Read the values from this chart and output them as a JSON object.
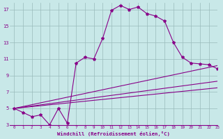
{
  "xlabel": "Windchill (Refroidissement éolien,°C)",
  "bg_color": "#c8e8e8",
  "line_color": "#880088",
  "grid_color": "#99bbbb",
  "line1_x": [
    0,
    1,
    2,
    3,
    4,
    5,
    6,
    7,
    8,
    9,
    10,
    11,
    12,
    13,
    14,
    15,
    16,
    17,
    18,
    19,
    20,
    21,
    22,
    23
  ],
  "line1_y": [
    5.0,
    4.5,
    4.0,
    4.2,
    3.0,
    5.0,
    3.2,
    10.5,
    11.2,
    11.0,
    13.5,
    16.9,
    17.5,
    17.0,
    17.3,
    16.5,
    16.2,
    15.6,
    13.0,
    11.2,
    10.5,
    10.4,
    10.3,
    9.8
  ],
  "line2_x": [
    0,
    23
  ],
  "line2_y": [
    5.0,
    10.2
  ],
  "line3_x": [
    0,
    23
  ],
  "line3_y": [
    5.0,
    8.3
  ],
  "line4_x": [
    0,
    23
  ],
  "line4_y": [
    5.0,
    7.5
  ],
  "xlim": [
    -0.5,
    23
  ],
  "ylim": [
    3,
    17.8
  ],
  "xticks": [
    0,
    1,
    2,
    3,
    4,
    5,
    6,
    7,
    8,
    9,
    10,
    11,
    12,
    13,
    14,
    15,
    16,
    17,
    18,
    19,
    20,
    21,
    22,
    23
  ],
  "yticks": [
    3,
    5,
    7,
    9,
    11,
    13,
    15,
    17
  ]
}
